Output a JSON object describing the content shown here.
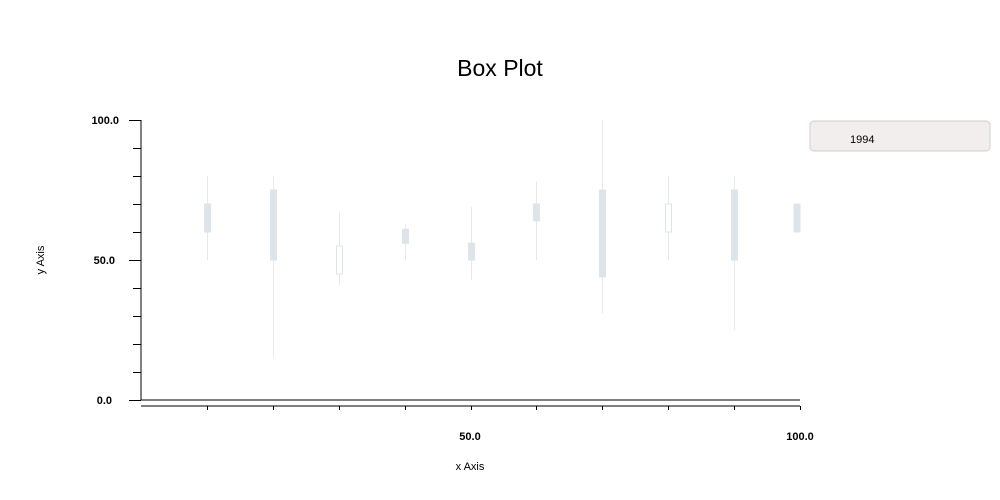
{
  "chart_data": {
    "type": "box",
    "title": "Box Plot",
    "xlabel": "x Axis",
    "ylabel": "y Axis",
    "xlim": [
      0,
      100
    ],
    "ylim": [
      0,
      100
    ],
    "x_tick_labels": [
      "50.0",
      "100.0"
    ],
    "y_tick_labels": [
      "0.0",
      "50.0",
      "100.0"
    ],
    "x_tick_values": [
      50,
      100
    ],
    "y_tick_values": [
      0,
      50,
      100
    ],
    "grid": false,
    "legend": {
      "position": "right",
      "entries": [
        "1994"
      ]
    },
    "series": [
      {
        "name": "1994",
        "boxes": [
          {
            "x": 10,
            "min": 50,
            "q1": 60,
            "q3": 70,
            "max": 80,
            "filled": true
          },
          {
            "x": 20,
            "min": 15,
            "q1": 50,
            "q3": 75,
            "max": 80,
            "filled": true
          },
          {
            "x": 30,
            "min": 41,
            "q1": 45,
            "q3": 55,
            "max": 67,
            "filled": false
          },
          {
            "x": 40,
            "min": 50,
            "q1": 56,
            "q3": 61,
            "max": 63,
            "filled": true
          },
          {
            "x": 50,
            "min": 43,
            "q1": 50,
            "q3": 56,
            "max": 69,
            "filled": true
          },
          {
            "x": 60,
            "min": 50,
            "q1": 64,
            "q3": 70,
            "max": 78,
            "filled": true
          },
          {
            "x": 70,
            "min": 31,
            "q1": 44,
            "q3": 75,
            "max": 100,
            "filled": true
          },
          {
            "x": 80,
            "min": 50,
            "q1": 60,
            "q3": 70,
            "max": 80,
            "filled": false
          },
          {
            "x": 90,
            "min": 25,
            "q1": 50,
            "q3": 75,
            "max": 80,
            "filled": true
          },
          {
            "x": 100,
            "min": 60,
            "q1": 60,
            "q3": 70,
            "max": 70,
            "filled": true
          }
        ]
      }
    ],
    "colors": {
      "box_fill": "#dde4ea",
      "box_stroke": "#dde4ea",
      "whisker": "#e6e9ec",
      "legend_bg": "#f3eeee",
      "legend_border": "#cfcfcf"
    }
  }
}
